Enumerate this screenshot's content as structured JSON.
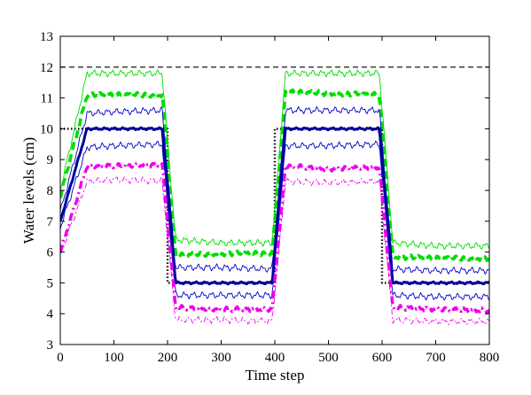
{
  "chart_data": {
    "type": "line",
    "title": "",
    "xlabel": "Time step",
    "ylabel": "Water levels (cm)",
    "xlim": [
      0,
      800
    ],
    "ylim": [
      3,
      13
    ],
    "xticks": [
      0,
      100,
      200,
      300,
      400,
      500,
      600,
      700,
      800
    ],
    "yticks": [
      3,
      4,
      5,
      6,
      7,
      8,
      9,
      10,
      11,
      12,
      13
    ],
    "grid": false,
    "legend": "none",
    "series": [
      {
        "key": "upper_limit",
        "style": "dashed",
        "color": "#000000",
        "points": [
          [
            0,
            12
          ],
          [
            800,
            12
          ]
        ]
      },
      {
        "key": "reference",
        "style": "dotted",
        "color": "#000000",
        "points": [
          [
            0,
            10
          ],
          [
            200,
            10
          ],
          [
            200,
            5
          ],
          [
            400,
            5
          ],
          [
            400,
            10
          ],
          [
            600,
            10
          ],
          [
            600,
            5
          ],
          [
            800,
            5
          ]
        ]
      },
      {
        "key": "green_upper",
        "style": "thin",
        "color": "#00dd00",
        "points": [
          [
            0,
            8.0
          ],
          [
            50,
            11.8
          ],
          [
            100,
            11.8
          ],
          [
            190,
            11.8
          ],
          [
            215,
            6.4
          ],
          [
            300,
            6.3
          ],
          [
            395,
            6.3
          ],
          [
            420,
            11.8
          ],
          [
            500,
            11.8
          ],
          [
            595,
            11.8
          ],
          [
            620,
            6.3
          ],
          [
            700,
            6.2
          ],
          [
            800,
            6.2
          ]
        ]
      },
      {
        "key": "green_mean",
        "style": "bold-dashed",
        "color": "#00dd00",
        "points": [
          [
            0,
            7.8
          ],
          [
            50,
            11.1
          ],
          [
            100,
            11.1
          ],
          [
            190,
            11.1
          ],
          [
            215,
            5.9
          ],
          [
            300,
            5.95
          ],
          [
            395,
            5.95
          ],
          [
            420,
            11.2
          ],
          [
            500,
            11.15
          ],
          [
            595,
            11.1
          ],
          [
            620,
            5.85
          ],
          [
            700,
            5.8
          ],
          [
            800,
            5.8
          ]
        ]
      },
      {
        "key": "blue_upper",
        "style": "thin",
        "color": "#0000cc",
        "points": [
          [
            0,
            7.3
          ],
          [
            50,
            10.5
          ],
          [
            100,
            10.55
          ],
          [
            190,
            10.6
          ],
          [
            215,
            5.5
          ],
          [
            300,
            5.5
          ],
          [
            395,
            5.45
          ],
          [
            420,
            10.6
          ],
          [
            500,
            10.6
          ],
          [
            595,
            10.6
          ],
          [
            620,
            5.45
          ],
          [
            700,
            5.4
          ],
          [
            800,
            5.4
          ]
        ]
      },
      {
        "key": "blue_mean",
        "style": "solid-bold",
        "color": "#000099",
        "points": [
          [
            0,
            7.0
          ],
          [
            50,
            10.0
          ],
          [
            100,
            10.0
          ],
          [
            190,
            10.0
          ],
          [
            215,
            5.0
          ],
          [
            300,
            5.0
          ],
          [
            395,
            5.0
          ],
          [
            420,
            10.0
          ],
          [
            500,
            10.0
          ],
          [
            595,
            10.0
          ],
          [
            620,
            5.0
          ],
          [
            700,
            5.0
          ],
          [
            800,
            5.0
          ]
        ]
      },
      {
        "key": "blue_lower",
        "style": "thin",
        "color": "#0000cc",
        "points": [
          [
            0,
            6.8
          ],
          [
            50,
            9.4
          ],
          [
            100,
            9.45
          ],
          [
            190,
            9.5
          ],
          [
            215,
            4.6
          ],
          [
            300,
            4.6
          ],
          [
            395,
            4.6
          ],
          [
            420,
            9.45
          ],
          [
            500,
            9.45
          ],
          [
            595,
            9.5
          ],
          [
            620,
            4.6
          ],
          [
            700,
            4.55
          ],
          [
            800,
            4.55
          ]
        ]
      },
      {
        "key": "magenta_mean",
        "style": "bold-dashdot",
        "color": "#ee00ee",
        "points": [
          [
            0,
            6.0
          ],
          [
            50,
            8.8
          ],
          [
            100,
            8.8
          ],
          [
            190,
            8.85
          ],
          [
            215,
            4.2
          ],
          [
            300,
            4.15
          ],
          [
            395,
            4.15
          ],
          [
            420,
            8.8
          ],
          [
            500,
            8.7
          ],
          [
            595,
            8.75
          ],
          [
            620,
            4.2
          ],
          [
            700,
            4.15
          ],
          [
            800,
            4.1
          ]
        ]
      },
      {
        "key": "magenta_lower",
        "style": "thin-dashdot",
        "color": "#ee00ee",
        "points": [
          [
            0,
            5.9
          ],
          [
            50,
            8.3
          ],
          [
            100,
            8.35
          ],
          [
            190,
            8.3
          ],
          [
            215,
            3.8
          ],
          [
            300,
            3.8
          ],
          [
            395,
            3.75
          ],
          [
            420,
            8.3
          ],
          [
            500,
            8.25
          ],
          [
            595,
            8.3
          ],
          [
            620,
            3.8
          ],
          [
            700,
            3.75
          ],
          [
            800,
            3.75
          ]
        ]
      }
    ]
  }
}
